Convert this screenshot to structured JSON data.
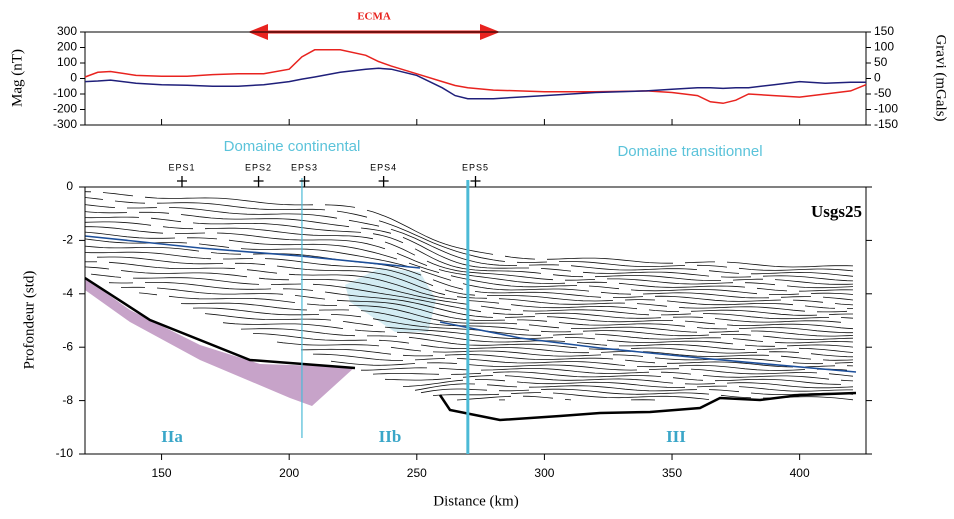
{
  "chart_data": [
    {
      "type": "line",
      "annotation": "ECMA",
      "ylabel": "Mag (nT)",
      "y2label": "Gravi (mGals)",
      "x": [
        120,
        125,
        130,
        140,
        150,
        160,
        170,
        180,
        190,
        200,
        205,
        210,
        220,
        230,
        235,
        240,
        250,
        260,
        265,
        270,
        280,
        290,
        300,
        320,
        340,
        350,
        360,
        365,
        370,
        375,
        380,
        390,
        400,
        410,
        420,
        426
      ],
      "xlim": [
        120,
        426
      ],
      "ylim": [
        -300,
        300
      ],
      "yticks": [
        300,
        200,
        100,
        0,
        -100,
        -200,
        -300
      ],
      "y2lim": [
        -150,
        150
      ],
      "y2ticks": [
        150,
        100,
        50,
        0,
        -50,
        -100,
        -150
      ],
      "series": [
        {
          "color": "#e8231f",
          "values": [
            10,
            40,
            45,
            20,
            15,
            15,
            25,
            30,
            30,
            60,
            140,
            185,
            185,
            150,
            110,
            80,
            30,
            -20,
            -45,
            -60,
            -75,
            -80,
            -85,
            -85,
            -80,
            -90,
            -110,
            -150,
            -160,
            -140,
            -100,
            -110,
            -120,
            -100,
            -80,
            -40
          ]
        },
        {
          "color": "#1f1f7a",
          "axis": "y2",
          "values": [
            -10,
            -8,
            -5,
            -15,
            -20,
            -22,
            -25,
            -25,
            -20,
            -10,
            -2,
            5,
            20,
            30,
            33,
            30,
            10,
            -30,
            -55,
            -65,
            -65,
            -60,
            -55,
            -45,
            -40,
            -35,
            -30,
            -30,
            -32,
            -30,
            -30,
            -20,
            -10,
            -15,
            -12,
            -12
          ]
        }
      ]
    },
    {
      "type": "section",
      "xlabel": "Distance (km)",
      "ylabel": "Profondeur (std)",
      "profile": "Usgs25",
      "domains": [
        "Domaine continental",
        "Domaine transitionnel"
      ],
      "units": [
        "IIa",
        "IIb",
        "III"
      ],
      "xlim": [
        120,
        426
      ],
      "ylim": [
        -10,
        0
      ],
      "xticks": [
        150,
        200,
        250,
        300,
        350,
        400
      ],
      "yticks": [
        0,
        -2,
        -4,
        -6,
        -8,
        -10
      ],
      "stations": [
        {
          "label": "EPS1",
          "x": 158
        },
        {
          "label": "EPS2",
          "x": 188
        },
        {
          "label": "EPS3",
          "x": 206
        },
        {
          "label": "EPS4",
          "x": 237
        },
        {
          "label": "EPS5",
          "x": 273
        }
      ],
      "boundaries": [
        205,
        270
      ],
      "boundary_color": "#4cbad6"
    }
  ]
}
